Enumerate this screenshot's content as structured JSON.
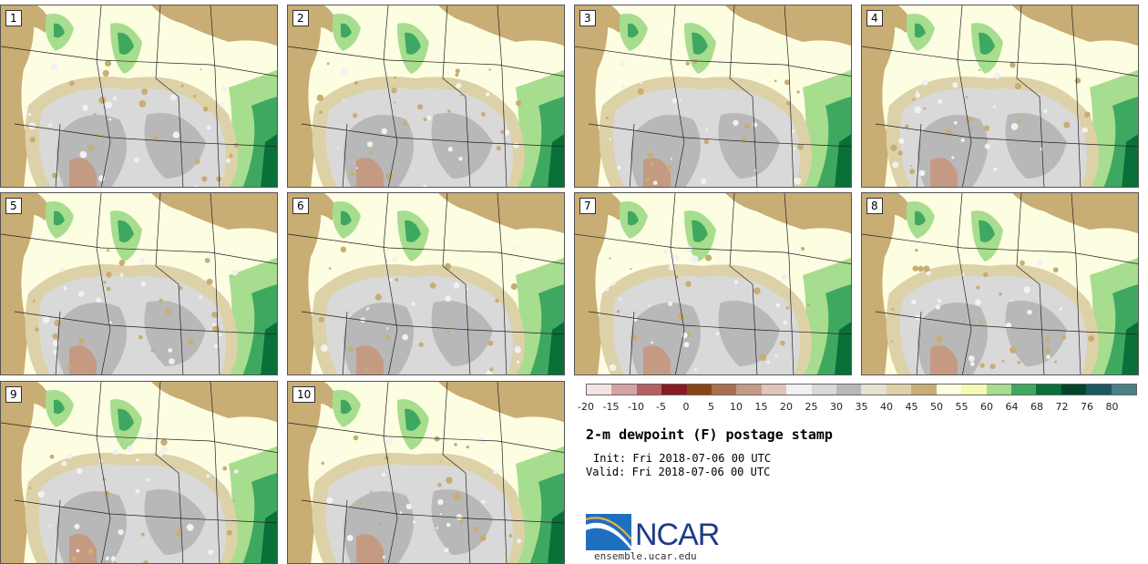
{
  "panels": [
    {
      "label": "1"
    },
    {
      "label": "2"
    },
    {
      "label": "3"
    },
    {
      "label": "4"
    },
    {
      "label": "5"
    },
    {
      "label": "6"
    },
    {
      "label": "7"
    },
    {
      "label": "8"
    },
    {
      "label": "9"
    },
    {
      "label": "10"
    }
  ],
  "colorbar": {
    "ticks": [
      "-20",
      "-15",
      "-10",
      "-5",
      "0",
      "5",
      "10",
      "15",
      "20",
      "25",
      "30",
      "35",
      "40",
      "45",
      "50",
      "55",
      "60",
      "64",
      "68",
      "72",
      "76",
      "80"
    ],
    "colors": [
      "#f5e4e4",
      "#d6a3a5",
      "#b55f63",
      "#8a1a22",
      "#8a4514",
      "#a8704f",
      "#c49a82",
      "#e0c5b8",
      "#f1f1f1",
      "#d9d9d9",
      "#b8b8b8",
      "#e5e2d1",
      "#ddd1a8",
      "#c8ad74",
      "#fdfde2",
      "#f5f9b3",
      "#a7dd8e",
      "#3fa860",
      "#087038",
      "#00442a",
      "#1a575e",
      "#4a7f85"
    ]
  },
  "title": "2-m dewpoint (F) postage stamp",
  "init": "Init: Fri 2018-07-06 00 UTC",
  "valid": "Valid: Fri 2018-07-06 00 UTC",
  "logo_text": "NCAR",
  "url": "ensemble.ucar.edu"
}
